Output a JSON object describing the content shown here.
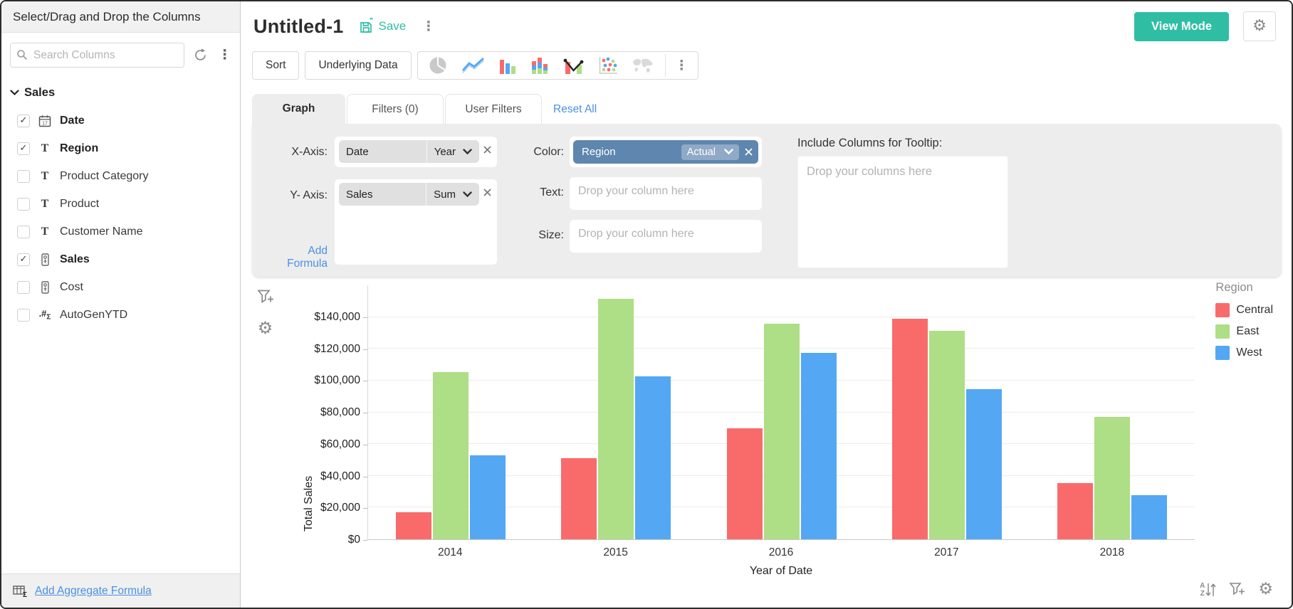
{
  "sidebar": {
    "title": "Select/Drag and Drop the Columns",
    "search": {
      "placeholder": "Search Columns"
    },
    "group": {
      "label": "Sales"
    },
    "columns": [
      {
        "label": "Date",
        "type": "date",
        "checked": true
      },
      {
        "label": "Region",
        "type": "text",
        "checked": true
      },
      {
        "label": "Product Category",
        "type": "text",
        "checked": false
      },
      {
        "label": "Product",
        "type": "text",
        "checked": false
      },
      {
        "label": "Customer Name",
        "type": "text",
        "checked": false
      },
      {
        "label": "Sales",
        "type": "measure",
        "checked": true
      },
      {
        "label": "Cost",
        "type": "measure",
        "checked": false
      },
      {
        "label": "AutoGenYTD",
        "type": "formula",
        "checked": false
      }
    ],
    "footer_link": "Add Aggregate Formula"
  },
  "header": {
    "title": "Untitled-1",
    "save_label": "Save",
    "view_mode_label": "View Mode"
  },
  "toolbar": {
    "sort_label": "Sort",
    "underlying_data_label": "Underlying Data",
    "chart_icons": [
      "pie-chart-icon",
      "line-chart-icon",
      "bar-chart-icon",
      "stacked-bar-chart-icon",
      "combo-chart-icon",
      "scatter-chart-icon",
      "map-chart-icon"
    ]
  },
  "tabs": [
    {
      "label": "Graph",
      "active": true
    },
    {
      "label": "Filters (0)",
      "active": false
    },
    {
      "label": "User Filters",
      "active": false
    }
  ],
  "reset_all_label": "Reset All",
  "config": {
    "x_axis": {
      "label": "X-Axis:",
      "field": "Date",
      "aggregate": "Year"
    },
    "y_axis": {
      "label": "Y- Axis:",
      "field": "Sales",
      "aggregate": "Sum"
    },
    "add_formula_label": "Add Formula",
    "color": {
      "label": "Color:",
      "field": "Region",
      "aggregate": "Actual"
    },
    "text": {
      "label": "Text:",
      "placeholder": "Drop your column here"
    },
    "size": {
      "label": "Size:",
      "placeholder": "Drop your column here"
    },
    "tooltip": {
      "label": "Include Columns for Tooltip:",
      "placeholder": "Drop your columns here"
    }
  },
  "chart_data": {
    "type": "bar",
    "categories": [
      "2014",
      "2015",
      "2016",
      "2017",
      "2018"
    ],
    "series": [
      {
        "name": "Central",
        "color": "#F96B6B",
        "values": [
          17000,
          51000,
          70000,
          139000,
          35500
        ]
      },
      {
        "name": "East",
        "color": "#AEDE85",
        "values": [
          105500,
          151500,
          136000,
          131500,
          77000
        ]
      },
      {
        "name": "West",
        "color": "#54A7F3",
        "values": [
          53000,
          102500,
          117500,
          94500,
          28000
        ]
      }
    ],
    "xlabel": "Year of Date",
    "ylabel": "Total Sales",
    "ylim": [
      0,
      160000
    ],
    "ytick_step": 20000,
    "ytick_labels": [
      "$0",
      "$20,000",
      "$40,000",
      "$60,000",
      "$80,000",
      "$100,000",
      "$120,000",
      "$140,000"
    ],
    "legend_title": "Region",
    "legend_position": "right",
    "grid": true
  },
  "colors": {
    "accent_teal": "#2FBEA4",
    "link_blue": "#4A90E2",
    "color_pill": "#5E86AE",
    "panel_gray": "#EDEDED"
  },
  "icons": {
    "sidebar": [
      "magnifier",
      "refresh",
      "kebab-menu",
      "chevron-down",
      "calendar",
      "text-T",
      "measure",
      "formula-sigma",
      "table-sigma"
    ],
    "chart_corner": [
      "az-sort",
      "funnel-plus",
      "gear"
    ]
  }
}
